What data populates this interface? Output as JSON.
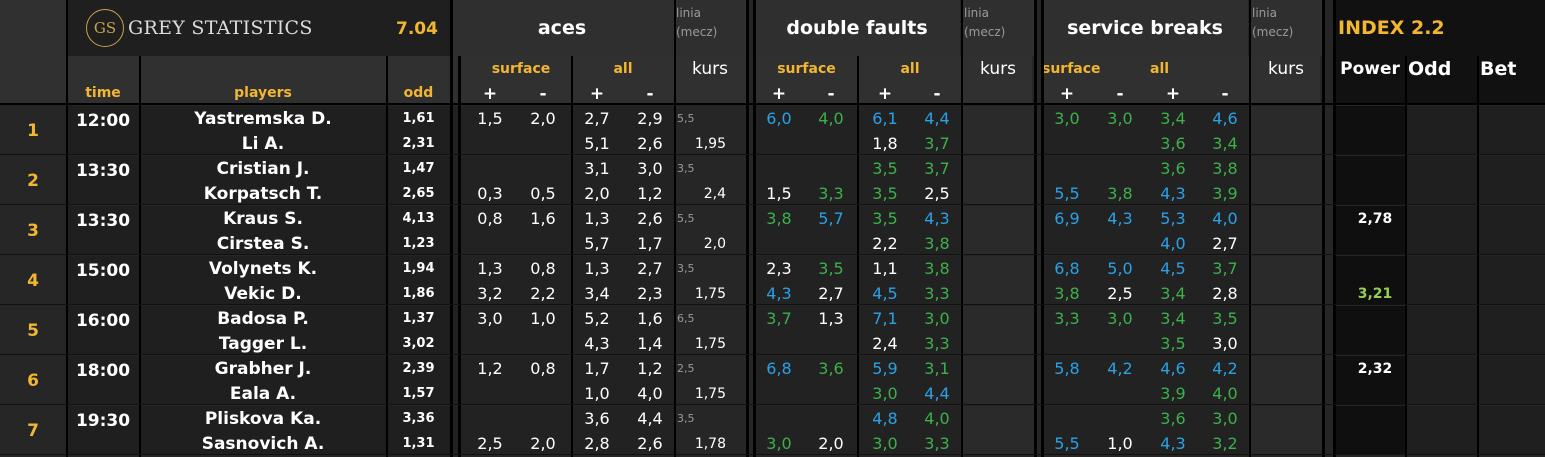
{
  "brand": {
    "logo_initials": "GS",
    "name": "GREY STATISTICS",
    "version": "7.04"
  },
  "sections": {
    "aces": {
      "title": "aces"
    },
    "double_faults": {
      "title": "double faults"
    },
    "service_breaks": {
      "title": "service breaks"
    },
    "linia_label": "linia",
    "mecz_label": "(mecz)",
    "index": {
      "title": "INDEX 2.2",
      "power": "Power",
      "odd": "Odd",
      "bet": "Bet"
    }
  },
  "columns": {
    "time": "time",
    "players": "players",
    "odd": "odd",
    "surface": "surface",
    "all": "all",
    "kurs": "kurs",
    "plus": "+",
    "minus": "-"
  },
  "colors": {
    "orange": "#f2b630",
    "white": "#ffffff",
    "green": "#3cb04a",
    "blue": "#2aa1e6",
    "lightgreen": "#92d050",
    "grey": "#9a9a9a"
  },
  "matches": [
    {
      "index": "1",
      "time": "12:00",
      "power": "",
      "power_color": "white",
      "players": [
        {
          "name": "Yastremska D.",
          "odd": "1,61",
          "aces": {
            "sp": "1,5",
            "sm": "2,0",
            "ap": "2,7",
            "am": "2,9",
            "linia": "5,5",
            "kurs": ""
          },
          "df": {
            "sp": {
              "v": "6,0",
              "c": "blue"
            },
            "sm": {
              "v": "4,0",
              "c": "green"
            },
            "ap": {
              "v": "6,1",
              "c": "blue"
            },
            "am": {
              "v": "4,4",
              "c": "blue"
            },
            "kurs": ""
          },
          "sb": {
            "sp": {
              "v": "3,0",
              "c": "green"
            },
            "sm": {
              "v": "3,0",
              "c": "green"
            },
            "ap": {
              "v": "3,4",
              "c": "green"
            },
            "am": {
              "v": "4,6",
              "c": "blue"
            }
          }
        },
        {
          "name": "Li A.",
          "odd": "2,31",
          "aces": {
            "sp": "",
            "sm": "",
            "ap": "5,1",
            "am": "2,6",
            "linia": "",
            "kurs": "1,95"
          },
          "df": {
            "sp": {
              "v": "",
              "c": "white"
            },
            "sm": {
              "v": "",
              "c": "white"
            },
            "ap": {
              "v": "1,8",
              "c": "white"
            },
            "am": {
              "v": "3,7",
              "c": "green"
            },
            "kurs": ""
          },
          "sb": {
            "sp": {
              "v": "",
              "c": "white"
            },
            "sm": {
              "v": "",
              "c": "white"
            },
            "ap": {
              "v": "3,6",
              "c": "green"
            },
            "am": {
              "v": "3,4",
              "c": "green"
            }
          }
        }
      ]
    },
    {
      "index": "2",
      "time": "13:30",
      "power": "",
      "power_color": "white",
      "players": [
        {
          "name": "Cristian J.",
          "odd": "1,47",
          "aces": {
            "sp": "",
            "sm": "",
            "ap": "3,1",
            "am": "3,0",
            "linia": "3,5",
            "kurs": ""
          },
          "df": {
            "sp": {
              "v": "",
              "c": "white"
            },
            "sm": {
              "v": "",
              "c": "white"
            },
            "ap": {
              "v": "3,5",
              "c": "green"
            },
            "am": {
              "v": "3,7",
              "c": "green"
            },
            "kurs": ""
          },
          "sb": {
            "sp": {
              "v": "",
              "c": "white"
            },
            "sm": {
              "v": "",
              "c": "white"
            },
            "ap": {
              "v": "3,6",
              "c": "green"
            },
            "am": {
              "v": "3,8",
              "c": "green"
            }
          }
        },
        {
          "name": "Korpatsch T.",
          "odd": "2,65",
          "aces": {
            "sp": "0,3",
            "sm": "0,5",
            "ap": "2,0",
            "am": "1,2",
            "linia": "",
            "kurs": "2,4"
          },
          "df": {
            "sp": {
              "v": "1,5",
              "c": "white"
            },
            "sm": {
              "v": "3,3",
              "c": "green"
            },
            "ap": {
              "v": "3,5",
              "c": "green"
            },
            "am": {
              "v": "2,5",
              "c": "white"
            },
            "kurs": ""
          },
          "sb": {
            "sp": {
              "v": "5,5",
              "c": "blue"
            },
            "sm": {
              "v": "3,8",
              "c": "green"
            },
            "ap": {
              "v": "4,3",
              "c": "blue"
            },
            "am": {
              "v": "3,9",
              "c": "green"
            }
          }
        }
      ]
    },
    {
      "index": "3",
      "time": "13:30",
      "power": "2,78",
      "power_color": "white",
      "players": [
        {
          "name": "Kraus S.",
          "odd": "4,13",
          "aces": {
            "sp": "0,8",
            "sm": "1,6",
            "ap": "1,3",
            "am": "2,6",
            "linia": "5,5",
            "kurs": ""
          },
          "df": {
            "sp": {
              "v": "3,8",
              "c": "green"
            },
            "sm": {
              "v": "5,7",
              "c": "blue"
            },
            "ap": {
              "v": "3,5",
              "c": "green"
            },
            "am": {
              "v": "4,3",
              "c": "blue"
            },
            "kurs": ""
          },
          "sb": {
            "sp": {
              "v": "6,9",
              "c": "blue"
            },
            "sm": {
              "v": "4,3",
              "c": "blue"
            },
            "ap": {
              "v": "5,3",
              "c": "blue"
            },
            "am": {
              "v": "4,0",
              "c": "blue"
            }
          }
        },
        {
          "name": "Cirstea S.",
          "odd": "1,23",
          "aces": {
            "sp": "",
            "sm": "",
            "ap": "5,7",
            "am": "1,7",
            "linia": "",
            "kurs": "2,0"
          },
          "df": {
            "sp": {
              "v": "",
              "c": "white"
            },
            "sm": {
              "v": "",
              "c": "white"
            },
            "ap": {
              "v": "2,2",
              "c": "white"
            },
            "am": {
              "v": "3,8",
              "c": "green"
            },
            "kurs": ""
          },
          "sb": {
            "sp": {
              "v": "",
              "c": "white"
            },
            "sm": {
              "v": "",
              "c": "white"
            },
            "ap": {
              "v": "4,0",
              "c": "blue"
            },
            "am": {
              "v": "2,7",
              "c": "white"
            }
          }
        }
      ]
    },
    {
      "index": "4",
      "time": "15:00",
      "power": "",
      "power_color": "white",
      "players": [
        {
          "name": "Volynets K.",
          "odd": "1,94",
          "aces": {
            "sp": "1,3",
            "sm": "0,8",
            "ap": "1,3",
            "am": "2,7",
            "linia": "3,5",
            "kurs": ""
          },
          "df": {
            "sp": {
              "v": "2,3",
              "c": "white"
            },
            "sm": {
              "v": "3,5",
              "c": "green"
            },
            "ap": {
              "v": "1,1",
              "c": "white"
            },
            "am": {
              "v": "3,8",
              "c": "green"
            },
            "kurs": ""
          },
          "sb": {
            "sp": {
              "v": "6,8",
              "c": "blue"
            },
            "sm": {
              "v": "5,0",
              "c": "blue"
            },
            "ap": {
              "v": "4,5",
              "c": "blue"
            },
            "am": {
              "v": "3,7",
              "c": "green"
            }
          }
        },
        {
          "name": "Vekic D.",
          "odd": "1,86",
          "aces": {
            "sp": "3,2",
            "sm": "2,2",
            "ap": "3,4",
            "am": "2,3",
            "linia": "",
            "kurs": "1,75"
          },
          "df": {
            "sp": {
              "v": "4,3",
              "c": "blue"
            },
            "sm": {
              "v": "2,7",
              "c": "white"
            },
            "ap": {
              "v": "4,5",
              "c": "blue"
            },
            "am": {
              "v": "3,3",
              "c": "green"
            },
            "kurs": ""
          },
          "sb": {
            "sp": {
              "v": "3,8",
              "c": "green"
            },
            "sm": {
              "v": "2,5",
              "c": "white"
            },
            "ap": {
              "v": "3,4",
              "c": "green"
            },
            "am": {
              "v": "2,8",
              "c": "white"
            }
          }
        }
      ]
    },
    {
      "index": "5",
      "time": "16:00",
      "power": "",
      "power_color": "white",
      "players": [
        {
          "name": "Badosa P.",
          "odd": "1,37",
          "aces": {
            "sp": "3,0",
            "sm": "1,0",
            "ap": "5,2",
            "am": "1,6",
            "linia": "6,5",
            "kurs": ""
          },
          "df": {
            "sp": {
              "v": "3,7",
              "c": "green"
            },
            "sm": {
              "v": "1,3",
              "c": "white"
            },
            "ap": {
              "v": "7,1",
              "c": "blue"
            },
            "am": {
              "v": "3,0",
              "c": "green"
            },
            "kurs": ""
          },
          "sb": {
            "sp": {
              "v": "3,3",
              "c": "green"
            },
            "sm": {
              "v": "3,0",
              "c": "green"
            },
            "ap": {
              "v": "3,4",
              "c": "green"
            },
            "am": {
              "v": "3,5",
              "c": "green"
            }
          }
        },
        {
          "name": "Tagger L.",
          "odd": "3,02",
          "aces": {
            "sp": "",
            "sm": "",
            "ap": "4,3",
            "am": "1,4",
            "linia": "",
            "kurs": "1,75"
          },
          "df": {
            "sp": {
              "v": "",
              "c": "white"
            },
            "sm": {
              "v": "",
              "c": "white"
            },
            "ap": {
              "v": "2,4",
              "c": "white"
            },
            "am": {
              "v": "3,3",
              "c": "green"
            },
            "kurs": ""
          },
          "sb": {
            "sp": {
              "v": "",
              "c": "white"
            },
            "sm": {
              "v": "",
              "c": "white"
            },
            "ap": {
              "v": "3,5",
              "c": "green"
            },
            "am": {
              "v": "3,0",
              "c": "white"
            }
          }
        }
      ]
    },
    {
      "index": "6",
      "time": "18:00",
      "power": "2,32",
      "power_color": "white",
      "players": [
        {
          "name": "Grabher J.",
          "odd": "2,39",
          "aces": {
            "sp": "1,2",
            "sm": "0,8",
            "ap": "1,7",
            "am": "1,2",
            "linia": "2,5",
            "kurs": ""
          },
          "df": {
            "sp": {
              "v": "6,8",
              "c": "blue"
            },
            "sm": {
              "v": "3,6",
              "c": "green"
            },
            "ap": {
              "v": "5,9",
              "c": "blue"
            },
            "am": {
              "v": "3,1",
              "c": "green"
            },
            "kurs": ""
          },
          "sb": {
            "sp": {
              "v": "5,8",
              "c": "blue"
            },
            "sm": {
              "v": "4,2",
              "c": "blue"
            },
            "ap": {
              "v": "4,6",
              "c": "blue"
            },
            "am": {
              "v": "4,2",
              "c": "blue"
            }
          }
        },
        {
          "name": "Eala A.",
          "odd": "1,57",
          "aces": {
            "sp": "",
            "sm": "",
            "ap": "1,0",
            "am": "4,0",
            "linia": "",
            "kurs": "1,75"
          },
          "df": {
            "sp": {
              "v": "",
              "c": "white"
            },
            "sm": {
              "v": "",
              "c": "white"
            },
            "ap": {
              "v": "3,0",
              "c": "green"
            },
            "am": {
              "v": "4,4",
              "c": "blue"
            },
            "kurs": ""
          },
          "sb": {
            "sp": {
              "v": "",
              "c": "white"
            },
            "sm": {
              "v": "",
              "c": "white"
            },
            "ap": {
              "v": "3,9",
              "c": "green"
            },
            "am": {
              "v": "4,0",
              "c": "green"
            }
          }
        }
      ]
    },
    {
      "index": "7",
      "time": "19:30",
      "power": "",
      "power_color": "white",
      "players": [
        {
          "name": "Pliskova Ka.",
          "odd": "3,36",
          "aces": {
            "sp": "",
            "sm": "",
            "ap": "3,6",
            "am": "4,4",
            "linia": "3,5",
            "kurs": ""
          },
          "df": {
            "sp": {
              "v": "",
              "c": "white"
            },
            "sm": {
              "v": "",
              "c": "white"
            },
            "ap": {
              "v": "4,8",
              "c": "blue"
            },
            "am": {
              "v": "4,0",
              "c": "green"
            },
            "kurs": ""
          },
          "sb": {
            "sp": {
              "v": "",
              "c": "white"
            },
            "sm": {
              "v": "",
              "c": "white"
            },
            "ap": {
              "v": "3,6",
              "c": "green"
            },
            "am": {
              "v": "3,0",
              "c": "green"
            }
          }
        },
        {
          "name": "Sasnovich A.",
          "odd": "1,31",
          "aces": {
            "sp": "2,5",
            "sm": "2,0",
            "ap": "2,8",
            "am": "2,6",
            "linia": "",
            "kurs": "1,78"
          },
          "df": {
            "sp": {
              "v": "3,0",
              "c": "green"
            },
            "sm": {
              "v": "2,0",
              "c": "white"
            },
            "ap": {
              "v": "3,0",
              "c": "green"
            },
            "am": {
              "v": "3,3",
              "c": "green"
            },
            "kurs": ""
          },
          "sb": {
            "sp": {
              "v": "5,5",
              "c": "blue"
            },
            "sm": {
              "v": "1,0",
              "c": "white"
            },
            "ap": {
              "v": "4,3",
              "c": "blue"
            },
            "am": {
              "v": "3,2",
              "c": "green"
            }
          }
        }
      ]
    }
  ],
  "index_extra": [
    {
      "match": 4,
      "player": 1,
      "value": "3,21",
      "color": "lightgreen"
    }
  ]
}
